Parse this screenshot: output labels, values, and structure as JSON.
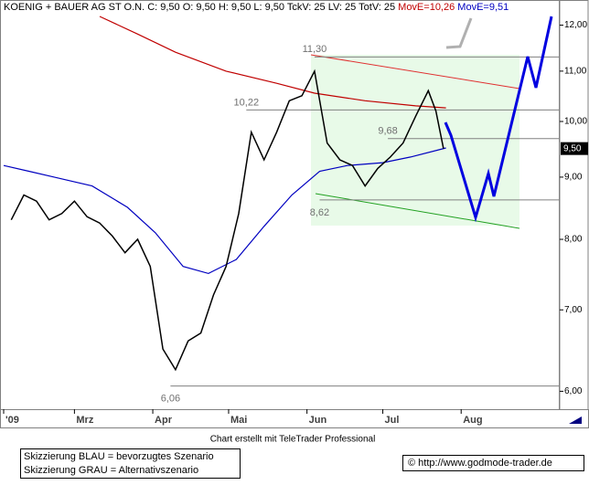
{
  "chart_data": {
    "type": "line",
    "header": "KOENIG + BAUER AG ST O.N.  C: 9,50 O: 9,50 H: 9,50 L: 9,50 TckV: 25 LV: 25 TotV: 25",
    "color": "#000000",
    "x": [
      35,
      40,
      45,
      50,
      55,
      60,
      65,
      70,
      75,
      80,
      85,
      90,
      95,
      100,
      105,
      110,
      115,
      120,
      125,
      130,
      135,
      140,
      145,
      150,
      155,
      160,
      165,
      170,
      175,
      180,
      185,
      190,
      195,
      200,
      203,
      206
    ],
    "values": [
      8.3,
      8.7,
      8.6,
      8.3,
      8.4,
      8.6,
      8.35,
      8.25,
      8.05,
      7.8,
      8.0,
      7.6,
      6.5,
      6.25,
      6.6,
      6.7,
      7.2,
      7.6,
      8.4,
      9.8,
      9.3,
      9.8,
      10.4,
      10.5,
      11.0,
      9.6,
      9.3,
      9.2,
      8.85,
      9.15,
      9.35,
      9.6,
      10.1,
      10.6,
      10.2,
      9.5
    ],
    "series": [
      {
        "name": "MovE=10,26",
        "color": "#c00000",
        "x": [
          70,
          85,
          100,
          120,
          140,
          155,
          175,
          195,
          207
        ],
        "values": [
          12.2,
          11.8,
          11.4,
          11.0,
          10.75,
          10.55,
          10.4,
          10.3,
          10.26
        ]
      },
      {
        "name": "MovE=9,51",
        "color": "#0000c0",
        "x": [
          32,
          42,
          52,
          67,
          81,
          92,
          103,
          113,
          124,
          135,
          146,
          157,
          168,
          182,
          193,
          207
        ],
        "values": [
          9.2,
          9.1,
          9.0,
          8.85,
          8.5,
          8.1,
          7.6,
          7.5,
          7.7,
          8.2,
          8.7,
          9.1,
          9.2,
          9.25,
          9.35,
          9.51
        ]
      }
    ],
    "log_scale": true,
    "xlim": [
      32,
      252
    ],
    "xticks": [
      {
        "value": 32,
        "label": "'09"
      },
      {
        "value": 60,
        "label": "Mrz"
      },
      {
        "value": 91,
        "label": "Apr"
      },
      {
        "value": 121,
        "label": "Mai"
      },
      {
        "value": 152,
        "label": "Jun"
      },
      {
        "value": 182,
        "label": "Jul"
      },
      {
        "value": 213,
        "label": "Aug"
      }
    ],
    "ylim": [
      5.8,
      12.2
    ],
    "yticks": [
      {
        "value": 6,
        "label": "6,00"
      },
      {
        "value": 7,
        "label": "7,00"
      },
      {
        "value": 8,
        "label": "8,00"
      },
      {
        "value": 9,
        "label": "9,00"
      },
      {
        "value": 10,
        "label": "10,00"
      },
      {
        "value": 11,
        "label": "11,00"
      },
      {
        "value": 12,
        "label": "12,00"
      }
    ],
    "levels": [
      {
        "value": 11.3,
        "label": "11,30",
        "x": 155
      },
      {
        "value": 10.22,
        "label": "10,22",
        "x": 128
      },
      {
        "value": 9.68,
        "label": "9,68",
        "x": 184
      },
      {
        "value": 8.62,
        "label": "8,62",
        "x": 157
      },
      {
        "value": 6.06,
        "label": "6,06",
        "x": 98
      }
    ],
    "last_price": {
      "value": 9.5,
      "label": "9,50"
    },
    "credit": "Chart erstellt mit TeleTrader Professional",
    "legend_notes": [
      "Skizzierung BLAU = bevorzugtes Szenario",
      "Skizzierung GRAU = Alternativszenario"
    ],
    "source": "© http://www.godmode-trader.de"
  }
}
